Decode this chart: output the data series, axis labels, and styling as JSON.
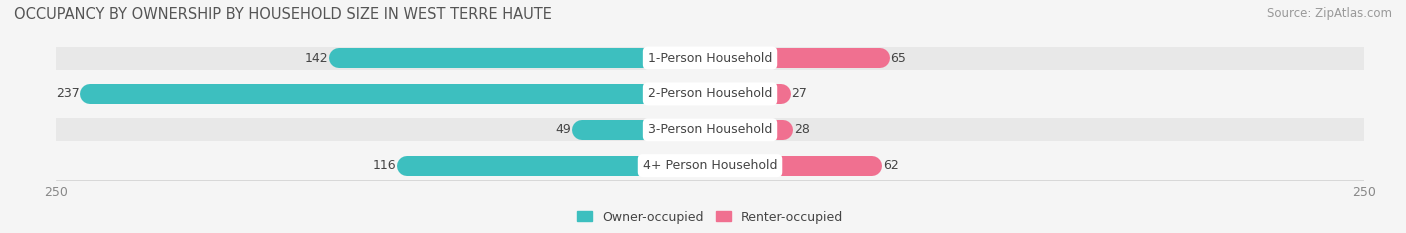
{
  "title": "OCCUPANCY BY OWNERSHIP BY HOUSEHOLD SIZE IN WEST TERRE HAUTE",
  "source": "Source: ZipAtlas.com",
  "categories": [
    "1-Person Household",
    "2-Person Household",
    "3-Person Household",
    "4+ Person Household"
  ],
  "owner_values": [
    142,
    237,
    49,
    116
  ],
  "renter_values": [
    65,
    27,
    28,
    62
  ],
  "owner_color": "#3DBFBF",
  "renter_color": "#F07090",
  "axis_max": 250,
  "row_bg_color": "#e8e8e8",
  "row_bg_color2": "#f5f5f5",
  "fig_bg_color": "#f5f5f5",
  "title_color": "#555555",
  "source_color": "#999999",
  "label_color": "#444444",
  "tick_color": "#888888",
  "title_fontsize": 10.5,
  "source_fontsize": 8.5,
  "bar_label_fontsize": 9,
  "cat_label_fontsize": 9,
  "tick_fontsize": 9,
  "legend_fontsize": 9
}
